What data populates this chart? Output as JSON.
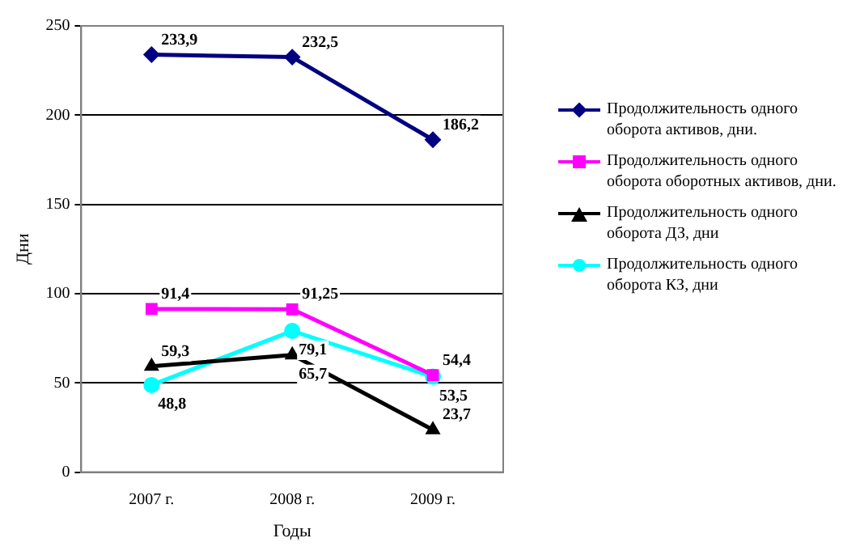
{
  "chart_data": {
    "type": "line",
    "xlabel": "Годы",
    "ylabel": "Дни",
    "categories": [
      "2007 г.",
      "2008 г.",
      "2009 г."
    ],
    "ylim": [
      0,
      250
    ],
    "yticks": [
      0,
      50,
      100,
      150,
      200,
      250
    ],
    "grid": "y",
    "legend": "right",
    "series": [
      {
        "name": "Продолжительность одного оборота активов, дни.",
        "color": "#000080",
        "marker": "diamond",
        "values": [
          233.9,
          232.5,
          186.2
        ],
        "value_labels": [
          "233,9",
          "232,5",
          "186,2"
        ]
      },
      {
        "name": "Продолжительность одного оборота оборотных активов, дни.",
        "color": "#ff00ff",
        "marker": "square",
        "values": [
          91.4,
          91.25,
          54.4
        ],
        "value_labels": [
          "91,4",
          "91,25",
          "54,4"
        ]
      },
      {
        "name": "Продолжительность одного оборота ДЗ, дни",
        "color": "#000000",
        "marker": "triangle",
        "values": [
          59.3,
          65.7,
          23.7
        ],
        "value_labels": [
          "59,3",
          "65,7",
          "23,7"
        ]
      },
      {
        "name": "Продолжительность одного оборота КЗ, дни",
        "color": "#00ffff",
        "marker": "circle",
        "values": [
          48.8,
          79.1,
          53.5
        ],
        "value_labels": [
          "48,8",
          "79,1",
          "53,5"
        ]
      }
    ]
  }
}
